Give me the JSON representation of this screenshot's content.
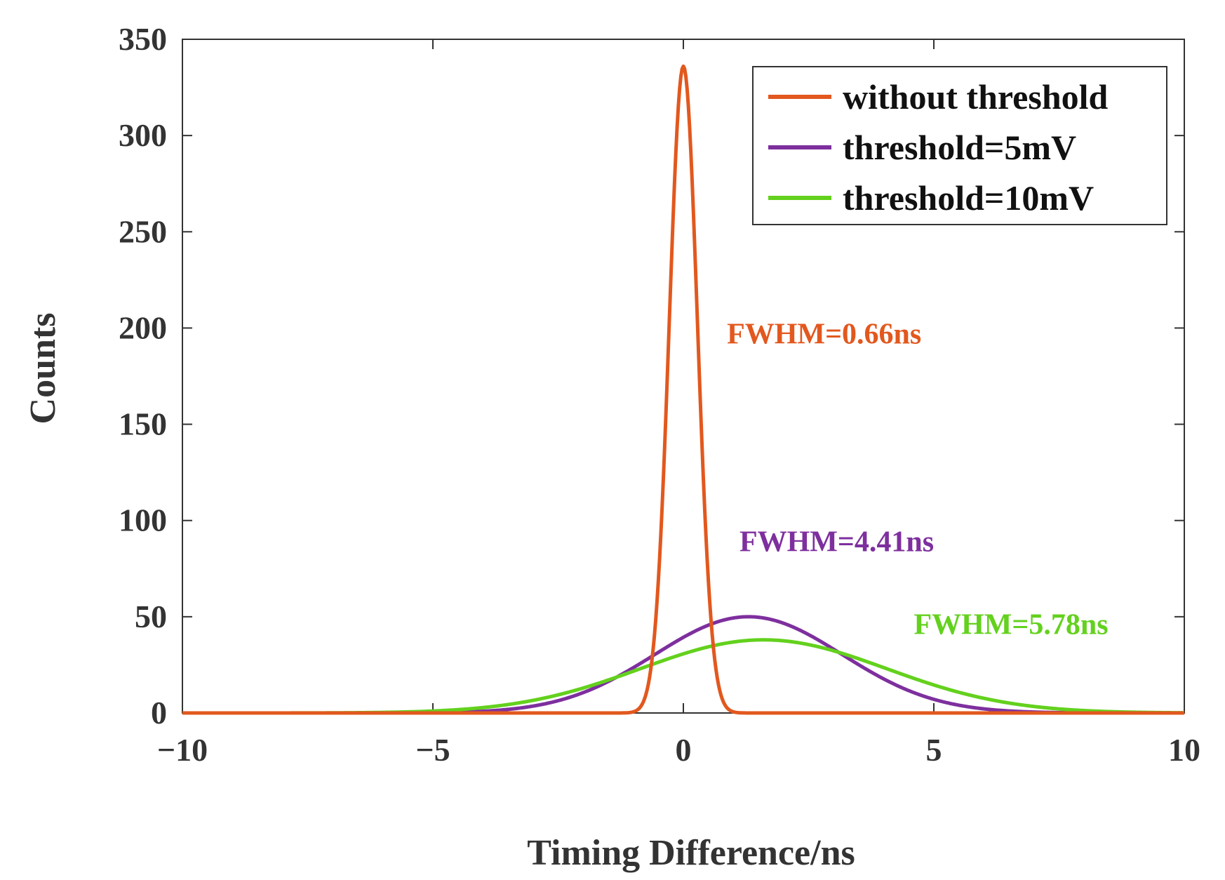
{
  "chart_data": {
    "type": "line",
    "title": "",
    "xlabel": "Timing Difference/ns",
    "ylabel": "Counts",
    "xlim": [
      -10,
      10
    ],
    "ylim": [
      0,
      350
    ],
    "xticks": [
      -10,
      -5,
      0,
      5,
      10
    ],
    "xtick_labels": [
      "−10",
      "−5",
      "0",
      "5",
      "10"
    ],
    "yticks": [
      0,
      50,
      100,
      150,
      200,
      250,
      300,
      350
    ],
    "ytick_labels": [
      "0",
      "50",
      "100",
      "150",
      "200",
      "250",
      "300",
      "350"
    ],
    "grid": false,
    "legend_position": "top-right",
    "series": [
      {
        "name": "without threshold",
        "color": "#E2581E",
        "peak_center": 0.0,
        "peak_height": 336,
        "fwhm": 0.66,
        "annotation": "FWHM=0.66ns",
        "annotation_at": [
          0.87,
          192
        ]
      },
      {
        "name": "threshold=5mV",
        "color": "#7E2F9E",
        "peak_center": 1.3,
        "peak_height": 50,
        "fwhm": 4.41,
        "annotation": "FWHM=4.41ns",
        "annotation_at": [
          1.12,
          84
        ]
      },
      {
        "name": "threshold=10mV",
        "color": "#63D11D",
        "peak_center": 1.6,
        "peak_height": 38,
        "fwhm": 5.78,
        "annotation": "FWHM=5.78ns",
        "annotation_at": [
          4.6,
          41
        ]
      }
    ]
  }
}
